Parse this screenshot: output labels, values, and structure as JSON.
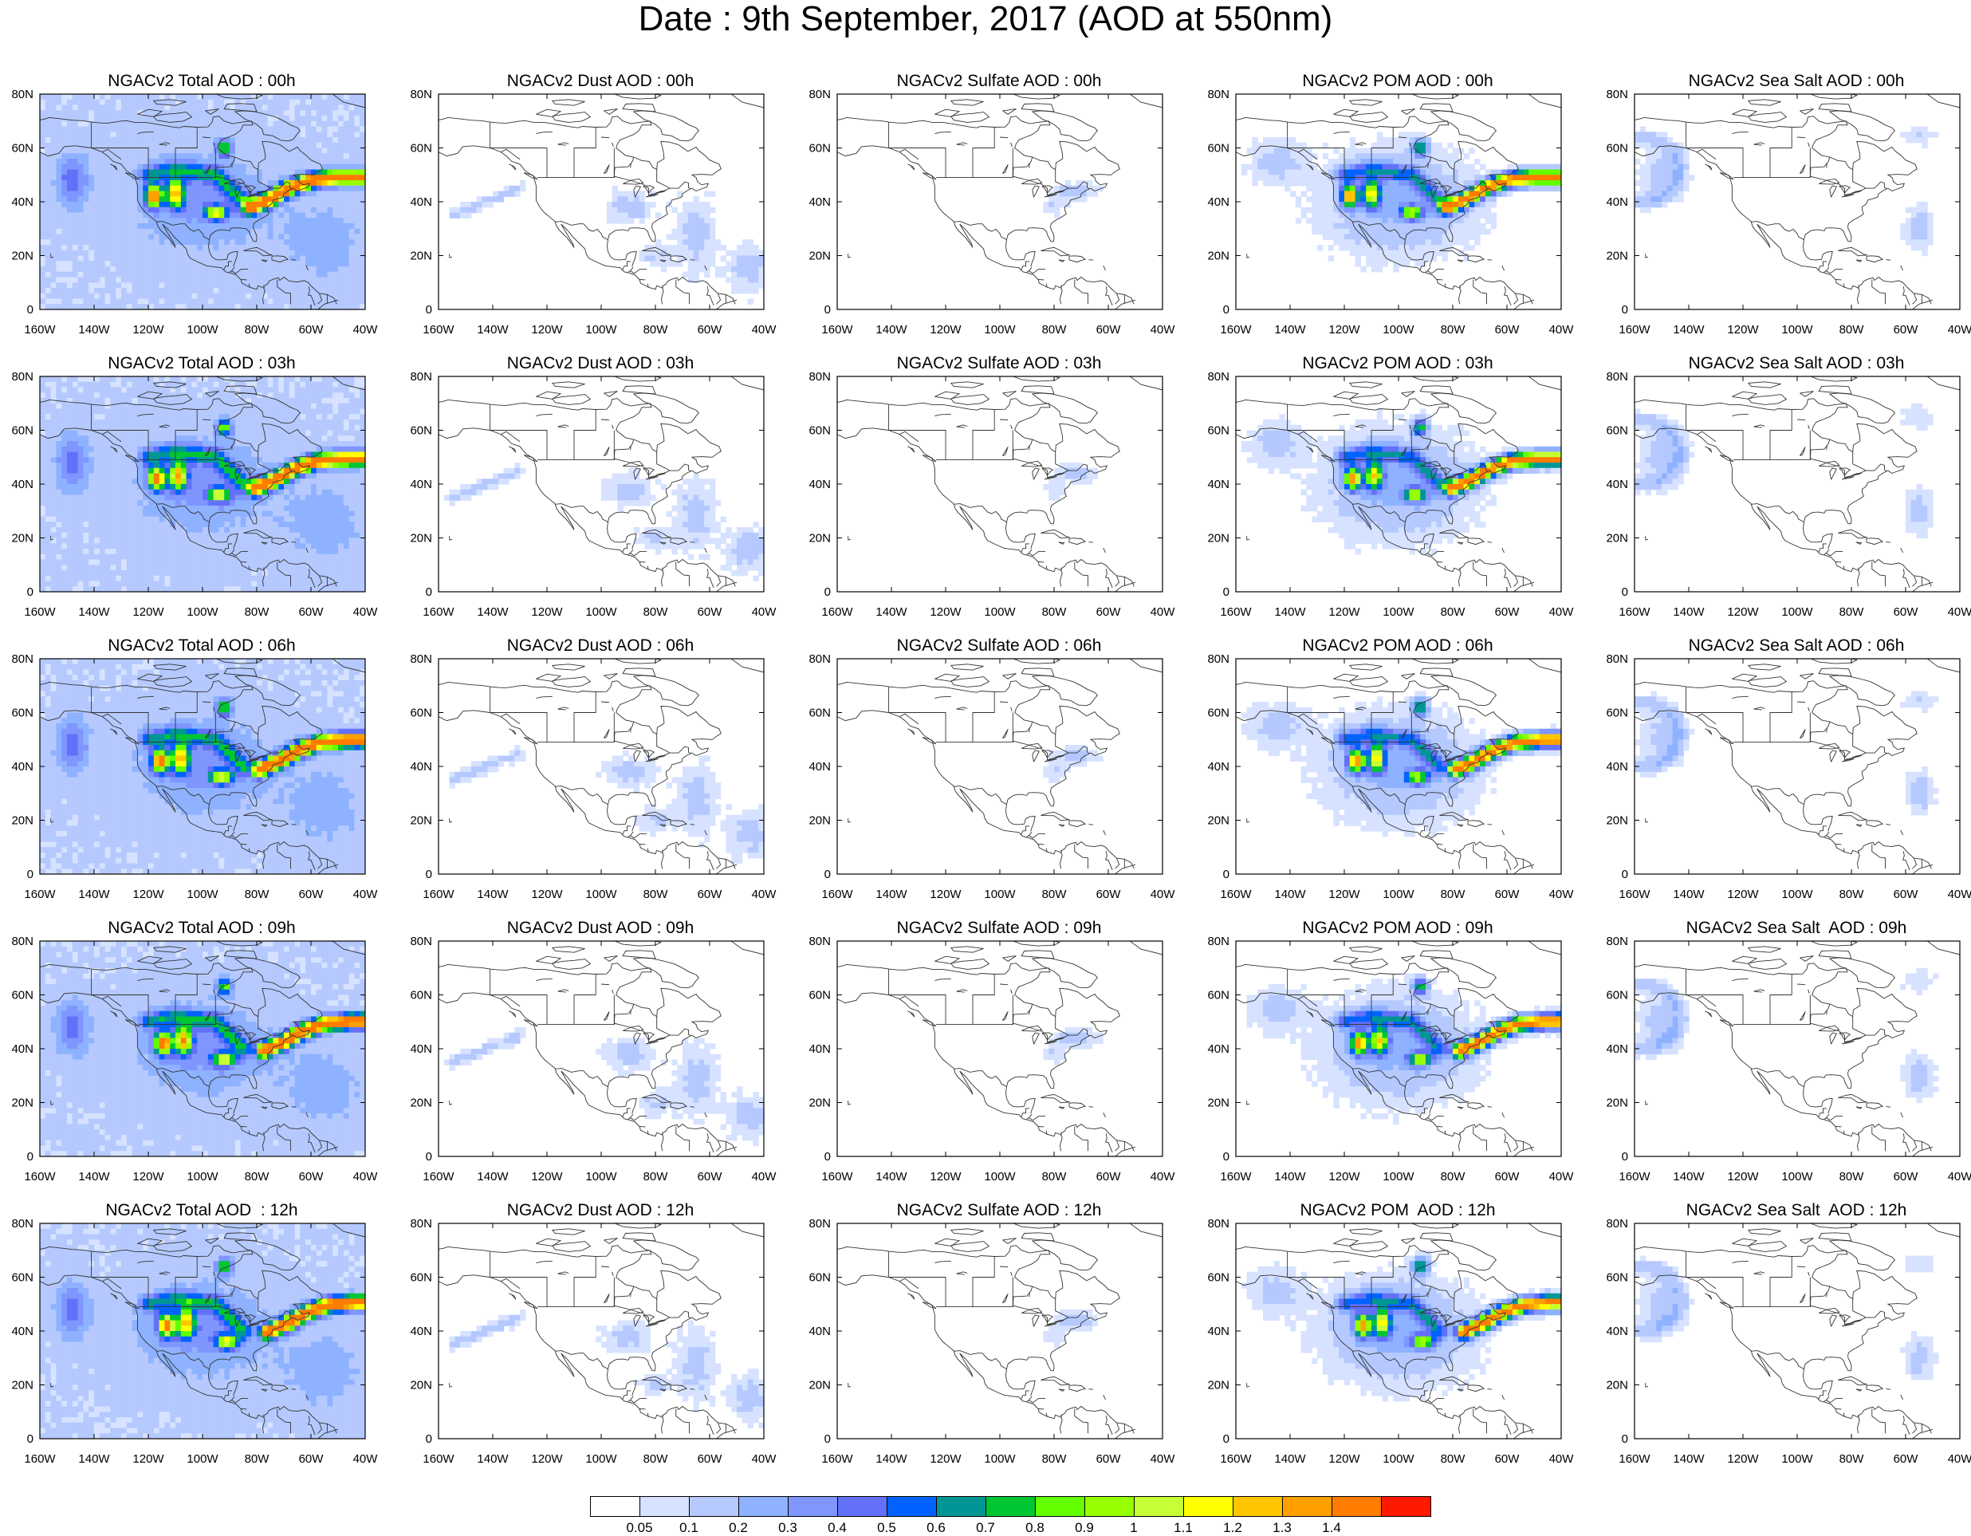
{
  "title": "Date : 9th September, 2017 (AOD at 550nm)",
  "map": {
    "projection": "cylindrical-equidistant",
    "lon_range": [
      -160,
      -40
    ],
    "lat_range": [
      0,
      80
    ],
    "x_ticks": [
      "160W",
      "140W",
      "120W",
      "100W",
      "80W",
      "60W",
      "40W"
    ],
    "y_ticks": [
      "0",
      "20N",
      "40N",
      "60N",
      "80N"
    ],
    "background_color": "#ffffff",
    "coastline_color": "#333333"
  },
  "columns": [
    {
      "species": "total",
      "titles": [
        "NGACv2 Total AOD : 00h",
        "NGACv2 Total AOD : 03h",
        "NGACv2 Total AOD : 06h",
        "NGACv2 Total AOD : 09h",
        "NGACv2 Total AOD  : 12h"
      ]
    },
    {
      "species": "dust",
      "titles": [
        "NGACv2 Dust AOD : 00h",
        "NGACv2 Dust AOD : 03h",
        "NGACv2 Dust AOD : 06h",
        "NGACv2 Dust AOD : 09h",
        "NGACv2 Dust AOD : 12h"
      ]
    },
    {
      "species": "sulfate",
      "titles": [
        "NGACv2 Sulfate AOD : 00h",
        "NGACv2 Sulfate AOD : 03h",
        "NGACv2 Sulfate AOD : 06h",
        "NGACv2 Sulfate AOD : 09h",
        "NGACv2 Sulfate AOD : 12h"
      ]
    },
    {
      "species": "pom",
      "titles": [
        "NGACv2 POM AOD : 00h",
        "NGACv2 POM AOD : 03h",
        "NGACv2 POM AOD : 06h",
        "NGACv2 POM AOD : 09h",
        "NGACv2 POM  AOD : 12h"
      ]
    },
    {
      "species": "seasalt",
      "titles": [
        "NGACv2 Sea Salt AOD : 00h",
        "NGACv2 Sea Salt AOD : 03h",
        "NGACv2 Sea Salt AOD : 06h",
        "NGACv2 Sea Salt  AOD : 09h",
        "NGACv2 Sea Salt  AOD : 12h"
      ]
    }
  ],
  "colorbar": {
    "levels": [
      "0.05",
      "0.1",
      "0.2",
      "0.3",
      "0.4",
      "0.5",
      "0.6",
      "0.7",
      "0.8",
      "0.9",
      "1",
      "1.1",
      "1.2",
      "1.3",
      "1.4"
    ],
    "colors": [
      "#ffffff",
      "#d6e2ff",
      "#b5c9ff",
      "#8eb2ff",
      "#7f96ff",
      "#6370f8",
      "#0063ff",
      "#009696",
      "#00c633",
      "#63ff00",
      "#96ff00",
      "#c6ff33",
      "#ffff00",
      "#ffc600",
      "#ffa000",
      "#ff7c00",
      "#ff1900"
    ]
  }
}
